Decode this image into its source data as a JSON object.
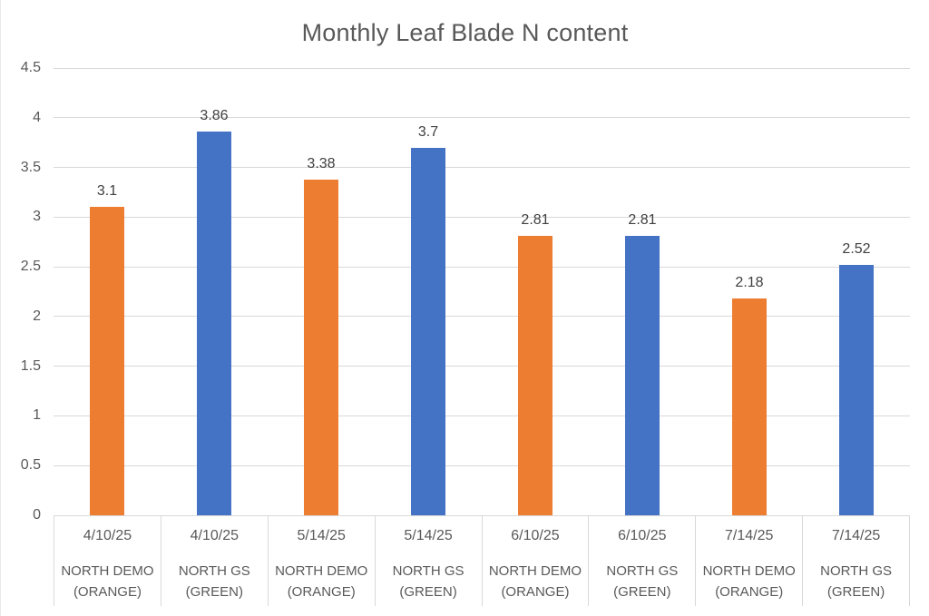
{
  "title": "Monthly Leaf Blade N content",
  "colors": {
    "orange_series": "#ED7D31",
    "blue_series": "#4472C4",
    "gridline": "#d9d9d9",
    "axis_text": "#595959",
    "data_label_text": "#404040",
    "title_text": "#595959",
    "background": "#ffffff"
  },
  "chart_data": {
    "type": "bar",
    "title": "Monthly Leaf Blade N content",
    "xlabel": "",
    "ylabel": "",
    "grid": true,
    "legend": "none",
    "y_axis": {
      "min": 0,
      "max": 4.5,
      "step": 0.5,
      "tick_labels": [
        "0",
        "0.5",
        "1",
        "1.5",
        "2",
        "2.5",
        "3",
        "3.5",
        "4",
        "4.5"
      ]
    },
    "bars": [
      {
        "date": "4/10/25",
        "series": "NORTH DEMO (ORANGE)",
        "value": 3.1,
        "label": "3.1",
        "color": "#ED7D31"
      },
      {
        "date": "4/10/25",
        "series": "NORTH GS (GREEN)",
        "value": 3.86,
        "label": "3.86",
        "color": "#4472C4"
      },
      {
        "date": "5/14/25",
        "series": "NORTH DEMO (ORANGE)",
        "value": 3.38,
        "label": "3.38",
        "color": "#ED7D31"
      },
      {
        "date": "5/14/25",
        "series": "NORTH GS (GREEN)",
        "value": 3.7,
        "label": "3.7",
        "color": "#4472C4"
      },
      {
        "date": "6/10/25",
        "series": "NORTH DEMO (ORANGE)",
        "value": 2.81,
        "label": "2.81",
        "color": "#ED7D31"
      },
      {
        "date": "6/10/25",
        "series": "NORTH GS (GREEN)",
        "value": 2.81,
        "label": "2.81",
        "color": "#4472C4"
      },
      {
        "date": "7/14/25",
        "series": "NORTH DEMO (ORANGE)",
        "value": 2.18,
        "label": "2.18",
        "color": "#ED7D31"
      },
      {
        "date": "7/14/25",
        "series": "NORTH GS (GREEN)",
        "value": 2.52,
        "label": "2.52",
        "color": "#4472C4"
      }
    ]
  }
}
